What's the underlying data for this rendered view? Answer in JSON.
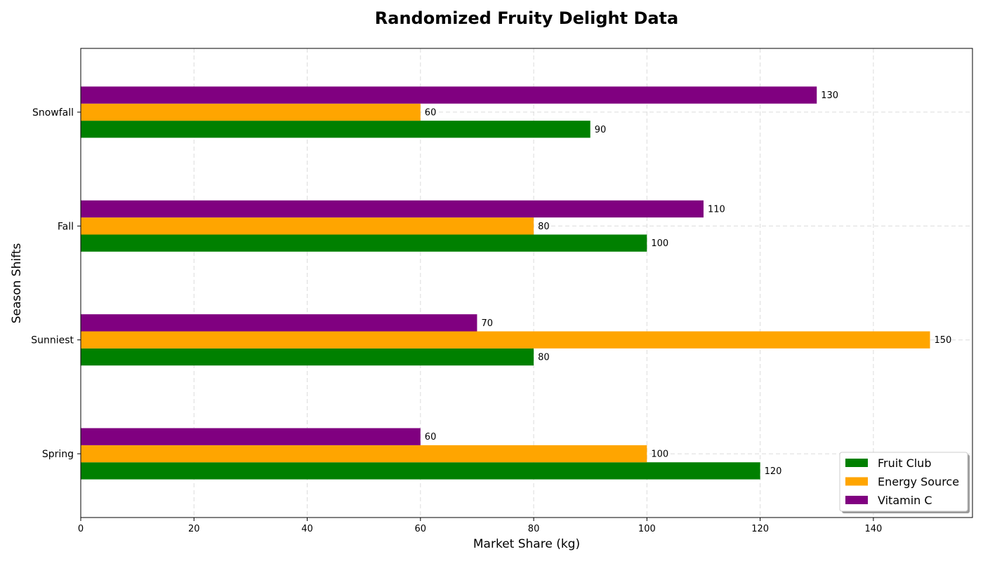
{
  "chart_data": {
    "type": "bar",
    "orientation": "horizontal",
    "title": "Randomized Fruity Delight Data",
    "xlabel": "Market Share (kg)",
    "ylabel": "Season Shifts",
    "categories": [
      "Spring",
      "Sunniest",
      "Fall",
      "Snowfall"
    ],
    "series": [
      {
        "name": "Fruit Club",
        "color": "#008000",
        "values": [
          120,
          80,
          100,
          90
        ]
      },
      {
        "name": "Energy Source",
        "color": "#ffa500",
        "values": [
          100,
          150,
          80,
          60
        ]
      },
      {
        "name": "Vitamin C",
        "color": "#800080",
        "values": [
          60,
          70,
          110,
          130
        ]
      }
    ],
    "xlim": [
      0,
      157.5
    ],
    "xticks": [
      0,
      20,
      40,
      60,
      80,
      100,
      120,
      140
    ],
    "grid": true,
    "legend_position": "lower-right"
  }
}
